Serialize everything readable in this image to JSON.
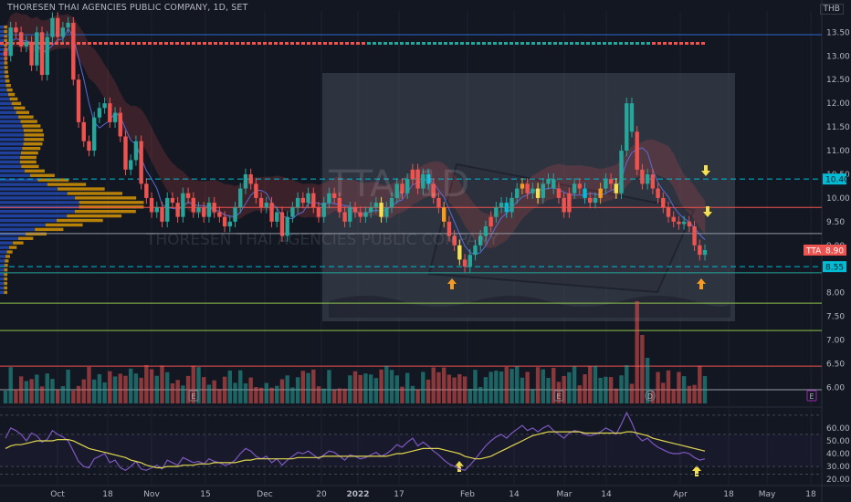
{
  "header": {
    "title": "THORESEN THAI AGENCIES PUBLIC COMPANY, 1D, SET",
    "currency": "THB"
  },
  "watermark": {
    "symbol": "TTA, 1D",
    "name": "THORESEN THAI AGENCIES PUBLIC COMPANY"
  },
  "price_labels": {
    "ticker": "TTA",
    "last": "8.90",
    "resistance": "10.40",
    "support": "8.55"
  },
  "colors": {
    "up": "#26a69a",
    "down": "#ef5350",
    "cyan": "#00bcd4",
    "orange": "#f59a23",
    "yellow": "#f5e050",
    "rsi": "#7e57c2",
    "rsi_ma": "#e0d650",
    "volume_profile_up": "#2962ff",
    "volume_profile_down": "#f0a500"
  },
  "chart_data": [
    {
      "type": "candlestick",
      "title": "THORESEN THAI AGENCIES PUBLIC COMPANY, 1D, SET",
      "x_ticks": [
        "Oct",
        "18",
        "Nov",
        "15",
        "Dec",
        "20",
        "2022",
        "17",
        "Feb",
        "14",
        "Mar",
        "14",
        "Apr",
        "18",
        "May",
        "18"
      ],
      "y_ticks": [
        "13.50",
        "13.00",
        "12.50",
        "12.00",
        "11.50",
        "11.00",
        "10.50",
        "10.00",
        "9.50",
        "9.00",
        "8.50",
        "8.00",
        "7.50",
        "7.00",
        "6.50",
        "6.00"
      ],
      "ylim": [
        5.7,
        13.95
      ],
      "horizontal_levels": [
        {
          "value": 13.45,
          "style": "solid",
          "color": "#2a6acb"
        },
        {
          "value": 10.4,
          "style": "dashed",
          "color": "#00bcd4"
        },
        {
          "value": 9.8,
          "style": "solid",
          "color": "#ef5350"
        },
        {
          "value": 9.25,
          "style": "solid",
          "color": "#9598a1"
        },
        {
          "value": 8.55,
          "style": "dashed",
          "color": "#00bcd4"
        },
        {
          "value": 8.42,
          "style": "solid",
          "color": "#26a69a"
        },
        {
          "value": 7.78,
          "style": "solid",
          "color": "#8bc34a"
        },
        {
          "value": 7.2,
          "style": "solid",
          "color": "#8bc34a"
        },
        {
          "value": 6.45,
          "style": "solid",
          "color": "#ef5350"
        },
        {
          "value": 5.95,
          "style": "solid",
          "color": "#9598a1"
        }
      ],
      "close_series": [
        13.0,
        13.6,
        13.5,
        13.2,
        13.3,
        12.8,
        13.5,
        12.6,
        13.4,
        13.8,
        13.4,
        13.6,
        13.7,
        12.5,
        11.6,
        11.2,
        11.0,
        11.7,
        11.9,
        12.0,
        11.6,
        11.8,
        11.3,
        10.6,
        10.8,
        11.2,
        10.3,
        10.0,
        9.7,
        9.8,
        9.5,
        10.0,
        9.9,
        9.6,
        10.1,
        10.0,
        9.7,
        9.8,
        9.6,
        9.9,
        9.7,
        9.6,
        9.4,
        9.5,
        9.8,
        10.2,
        10.5,
        10.3,
        10.0,
        9.8,
        9.9,
        9.5,
        9.7,
        9.2,
        9.6,
        9.8,
        10.0,
        9.9,
        10.1,
        9.8,
        9.6,
        9.9,
        10.1,
        10.0,
        9.7,
        9.5,
        9.8,
        9.7,
        9.6,
        9.7,
        9.8,
        9.9,
        9.6,
        9.8,
        10.0,
        10.3,
        10.1,
        10.4,
        10.6,
        10.2,
        10.5,
        10.3,
        10.0,
        9.8,
        9.5,
        9.2,
        9.0,
        8.7,
        8.55,
        8.8,
        9.0,
        9.2,
        9.4,
        9.6,
        9.8,
        9.9,
        9.7,
        10.0,
        10.2,
        10.3,
        10.1,
        10.2,
        10.0,
        10.3,
        10.4,
        10.2,
        10.0,
        9.7,
        10.1,
        10.3,
        10.2,
        10.0,
        9.9,
        10.0,
        10.2,
        10.4,
        10.3,
        10.1,
        11.0,
        12.0,
        11.4,
        10.6,
        10.3,
        10.5,
        10.2,
        10.0,
        9.8,
        9.6,
        9.5,
        9.45,
        9.5,
        9.4,
        9.0,
        8.8,
        8.9
      ],
      "volume_note": "volume bars with moving average",
      "volume_profile": "left-side horizontal volume profile"
    },
    {
      "type": "line",
      "title": "",
      "y_ticks": [
        "60.00",
        "50.00",
        "40.00",
        "30.00",
        "20.00"
      ],
      "ylim": [
        18,
        72
      ],
      "series": [
        {
          "values": [
            52,
            60,
            58,
            55,
            50,
            56,
            54,
            49,
            51,
            58,
            55,
            53,
            50,
            42,
            34,
            30,
            29,
            36,
            38,
            40,
            33,
            35,
            29,
            27,
            30,
            34,
            28,
            27,
            29,
            31,
            28,
            35,
            33,
            31,
            37,
            35,
            33,
            34,
            32,
            36,
            34,
            33,
            31,
            32,
            35,
            40,
            44,
            42,
            38,
            36,
            38,
            33,
            36,
            31,
            35,
            38,
            41,
            40,
            42,
            39,
            36,
            39,
            42,
            41,
            38,
            35,
            39,
            38,
            36,
            37,
            39,
            41,
            38,
            40,
            43,
            47,
            45,
            49,
            52,
            46,
            49,
            46,
            42,
            39,
            35,
            32,
            30,
            28,
            27,
            31,
            36,
            41,
            46,
            50,
            53,
            55,
            52,
            56,
            59,
            62,
            58,
            60,
            57,
            60,
            62,
            58,
            55,
            52,
            56,
            58,
            57,
            55,
            54,
            55,
            57,
            60,
            58,
            55,
            63,
            72,
            64,
            54,
            50,
            52,
            48,
            45,
            43,
            41,
            40,
            40,
            41,
            40,
            37,
            35,
            36
          ]
        },
        {
          "values": [
            44,
            46,
            47,
            47,
            48,
            49,
            50,
            50,
            50,
            50,
            51,
            51,
            51,
            50,
            48,
            46,
            44,
            43,
            42,
            41,
            40,
            39,
            38,
            37,
            35,
            34,
            33,
            31,
            30,
            29,
            29,
            30,
            30,
            30,
            31,
            31,
            31,
            32,
            32,
            32,
            33,
            33,
            33,
            33,
            33,
            34,
            35,
            35,
            36,
            36,
            36,
            36,
            36,
            36,
            36,
            36,
            37,
            37,
            37,
            37,
            37,
            38,
            38,
            38,
            38,
            38,
            38,
            38,
            38,
            38,
            38,
            38,
            38,
            38,
            39,
            40,
            40,
            41,
            42,
            43,
            44,
            44,
            44,
            44,
            43,
            42,
            41,
            40,
            38,
            37,
            36,
            36,
            37,
            38,
            40,
            42,
            44,
            46,
            48,
            50,
            52,
            54,
            55,
            56,
            57,
            57,
            57,
            57,
            57,
            57,
            57,
            56,
            56,
            56,
            56,
            56,
            56,
            56,
            56,
            57,
            57,
            56,
            55,
            54,
            52,
            51,
            50,
            49,
            48,
            47,
            46,
            45,
            44,
            43,
            42
          ]
        }
      ],
      "levels": [
        70,
        55,
        30,
        24
      ]
    }
  ]
}
